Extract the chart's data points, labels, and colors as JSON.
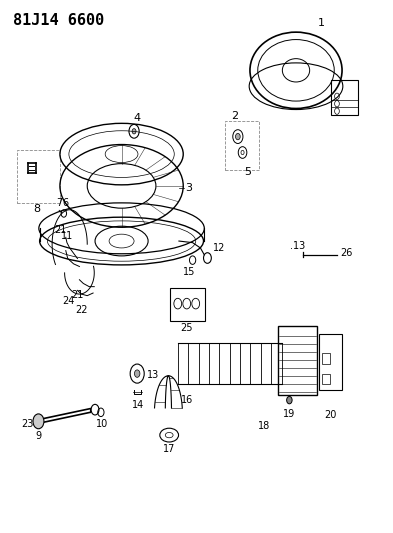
{
  "title": "81J14 6600",
  "bg_color": "#ffffff",
  "line_color": "#000000",
  "title_fontsize": 11,
  "label_fontsize": 8
}
